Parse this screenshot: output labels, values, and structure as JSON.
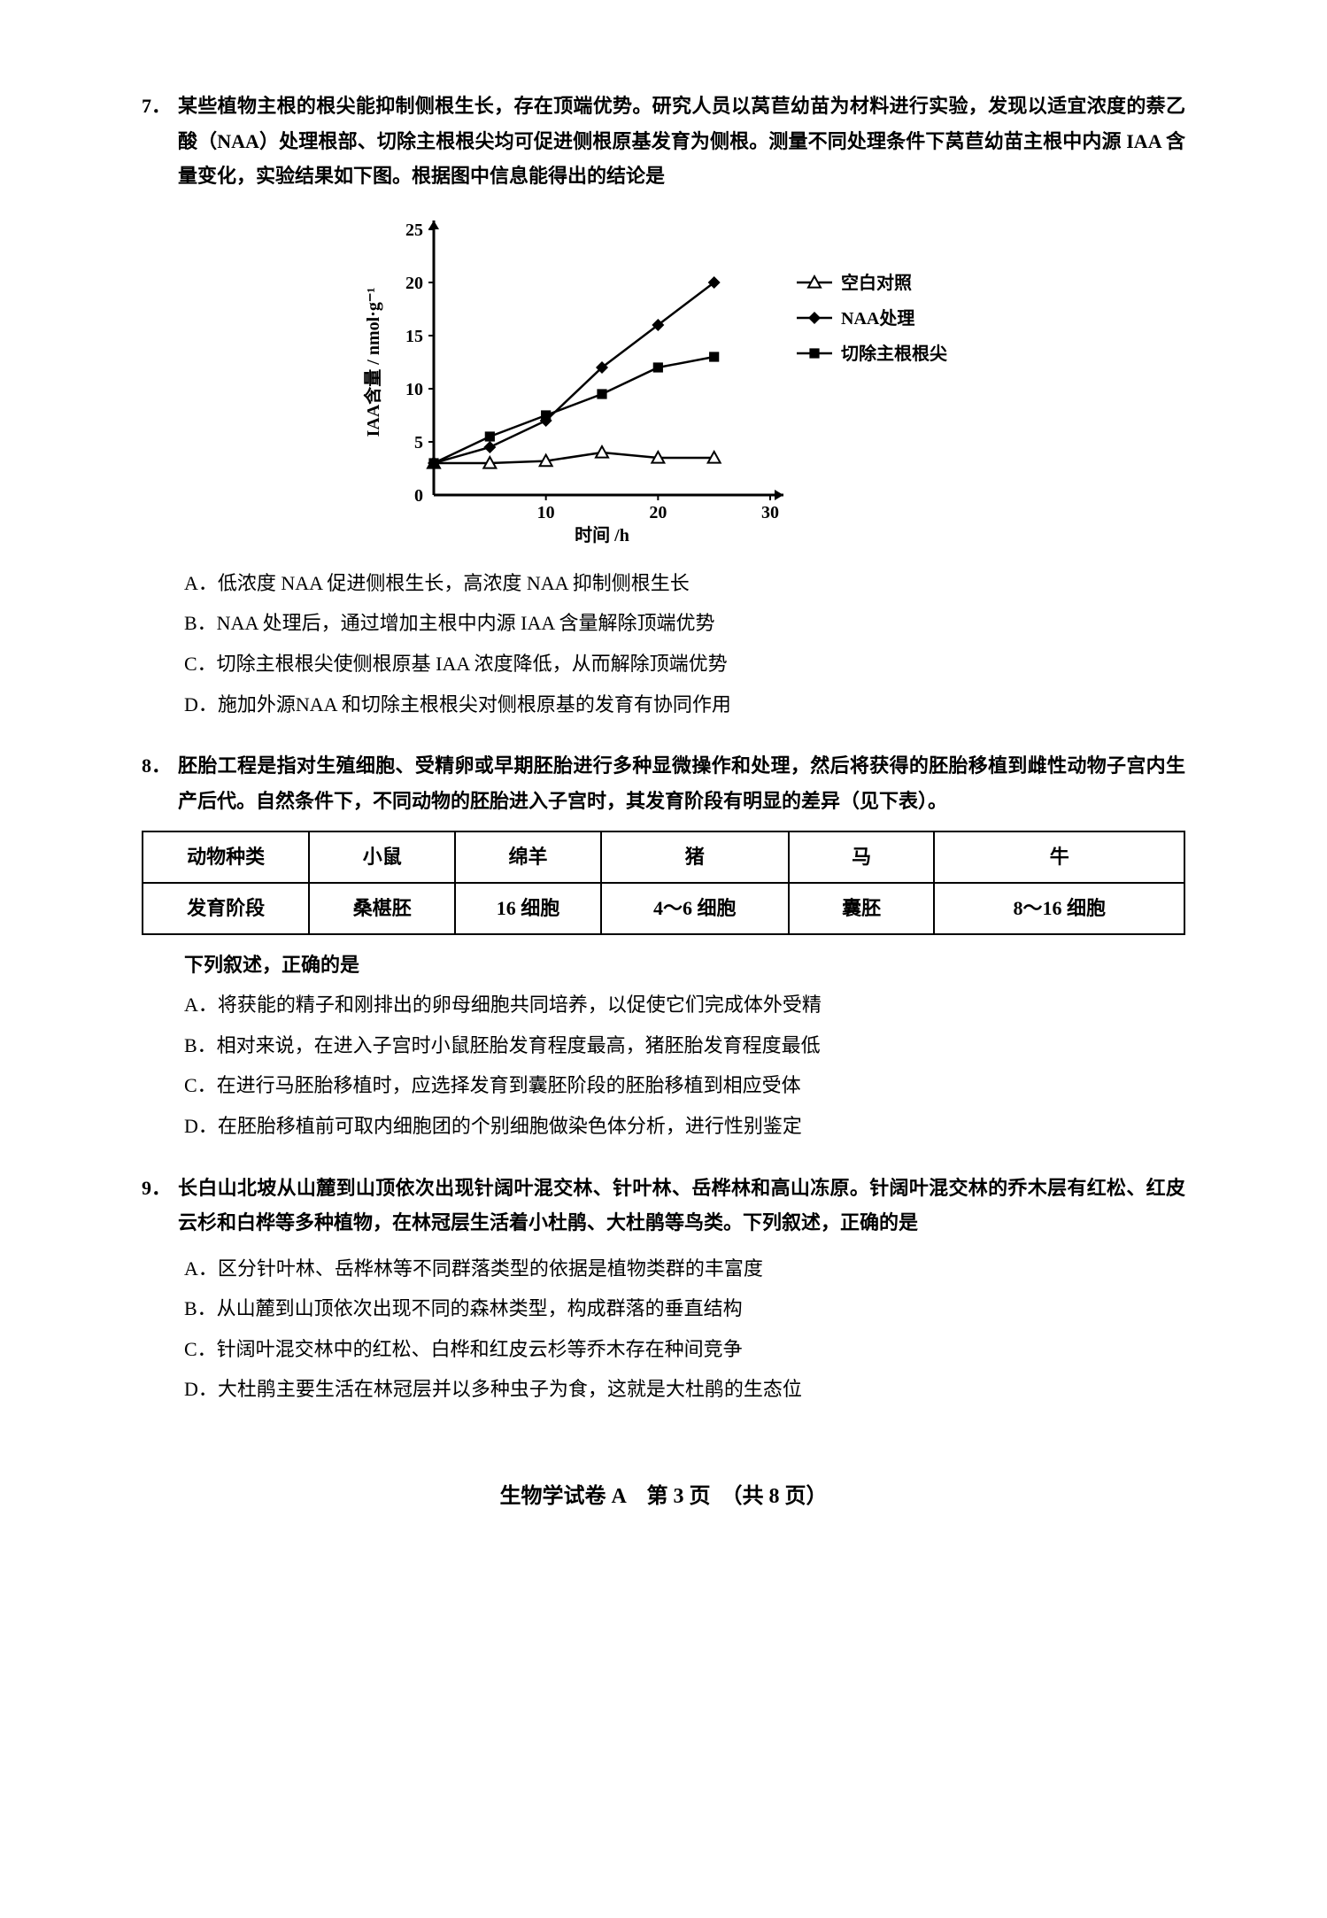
{
  "q7": {
    "number": "7．",
    "stem": "某些植物主根的根尖能抑制侧根生长，存在顶端优势。研究人员以莴苣幼苗为材料进行实验，发现以适宜浓度的萘乙酸（NAA）处理根部、切除主根根尖均可促进侧根原基发育为侧根。测量不同处理条件下莴苣幼苗主根中内源 IAA 含量变化，实验结果如下图。根据图中信息能得出的结论是",
    "options": {
      "A": "A．低浓度 NAA 促进侧根生长，高浓度 NAA 抑制侧根生长",
      "B": "B．NAA 处理后，通过增加主根中内源 IAA 含量解除顶端优势",
      "C": "C．切除主根根尖使侧根原基 IAA 浓度降低，从而解除顶端优势",
      "D": "D．施加外源NAA 和切除主根根尖对侧根原基的发育有协同作用"
    },
    "chart": {
      "type": "line",
      "xlabel": "时间 /h",
      "ylabel": "IAA含量 / nmol·g⁻¹",
      "xlim": [
        0,
        30
      ],
      "xtick_step": 10,
      "ylim": [
        0,
        25
      ],
      "ytick_step": 5,
      "axis_color": "#000000",
      "background_color": "#ffffff",
      "line_width": 2.5,
      "font_size": 20,
      "series": [
        {
          "name": "空白对照",
          "marker": "triangle-open",
          "color": "#000000",
          "points": [
            [
              0,
              3
            ],
            [
              5,
              3
            ],
            [
              10,
              3.2
            ],
            [
              15,
              4
            ],
            [
              20,
              3.5
            ],
            [
              25,
              3.5
            ]
          ]
        },
        {
          "name": "NAA处理",
          "marker": "diamond-solid",
          "color": "#000000",
          "points": [
            [
              0,
              3
            ],
            [
              5,
              4.5
            ],
            [
              10,
              7
            ],
            [
              15,
              12
            ],
            [
              20,
              16
            ],
            [
              25,
              20
            ]
          ]
        },
        {
          "name": "切除主根根尖",
          "marker": "square-solid",
          "color": "#000000",
          "points": [
            [
              0,
              3
            ],
            [
              5,
              5.5
            ],
            [
              10,
              7.5
            ],
            [
              15,
              9.5
            ],
            [
              20,
              12
            ],
            [
              25,
              13
            ]
          ]
        }
      ],
      "legend_position": "right"
    }
  },
  "q8": {
    "number": "8．",
    "stem": "胚胎工程是指对生殖细胞、受精卵或早期胚胎进行多种显微操作和处理，然后将获得的胚胎移植到雌性动物子宫内生产后代。自然条件下，不同动物的胚胎进入子宫时，其发育阶段有明显的差异（见下表）。",
    "table": {
      "columns": [
        "动物种类",
        "小鼠",
        "绵羊",
        "猪",
        "马",
        "牛"
      ],
      "rows": [
        [
          "发育阶段",
          "桑椹胚",
          "16 细胞",
          "4～6 细胞",
          "囊胚",
          "8～16 细胞"
        ]
      ],
      "border_color": "#000000",
      "col_widths": [
        "16%",
        "14%",
        "14%",
        "18%",
        "14%",
        "24%"
      ]
    },
    "subtext": "下列叙述，正确的是",
    "options": {
      "A": "A．将获能的精子和刚排出的卵母细胞共同培养，以促使它们完成体外受精",
      "B": "B．相对来说，在进入子宫时小鼠胚胎发育程度最高，猪胚胎发育程度最低",
      "C": "C．在进行马胚胎移植时，应选择发育到囊胚阶段的胚胎移植到相应受体",
      "D": "D．在胚胎移植前可取内细胞团的个别细胞做染色体分析，进行性别鉴定"
    }
  },
  "q9": {
    "number": "9．",
    "stem": "长白山北坡从山麓到山顶依次出现针阔叶混交林、针叶林、岳桦林和高山冻原。针阔叶混交林的乔木层有红松、红皮云杉和白桦等多种植物，在林冠层生活着小杜鹃、大杜鹃等鸟类。下列叙述，正确的是",
    "options": {
      "A": "A．区分针叶林、岳桦林等不同群落类型的依据是植物类群的丰富度",
      "B": "B．从山麓到山顶依次出现不同的森林类型，构成群落的垂直结构",
      "C": "C．针阔叶混交林中的红松、白桦和红皮云杉等乔木存在种间竞争",
      "D": "D．大杜鹃主要生活在林冠层并以多种虫子为食，这就是大杜鹃的生态位"
    }
  },
  "footer": "生物学试卷 A　第 3 页　（共 8 页）"
}
